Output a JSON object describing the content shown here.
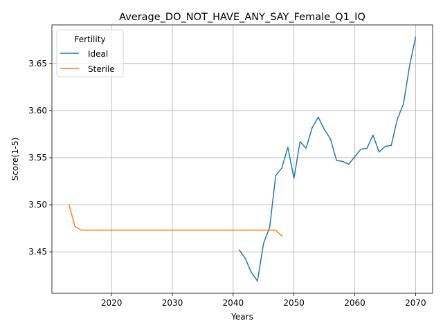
{
  "chart_data": {
    "type": "line",
    "title": "Average_DO_NOT_HAVE_ANY_SAY_Female_Q1_IQ",
    "xlabel": "Years",
    "ylabel": "Score(1-5)",
    "xlim": [
      2010.2,
      2072.8
    ],
    "ylim": [
      3.406,
      3.691
    ],
    "xticks": [
      2020,
      2030,
      2040,
      2050,
      2060,
      2070
    ],
    "yticks": [
      3.45,
      3.5,
      3.55,
      3.6,
      3.65
    ],
    "xtick_labels": [
      "2020",
      "2030",
      "2040",
      "2050",
      "2060",
      "2070"
    ],
    "ytick_labels": [
      "3.45",
      "3.50",
      "3.55",
      "3.60",
      "3.65"
    ],
    "grid": true,
    "legend": {
      "title": "Fertility",
      "placement": "upper left"
    },
    "series": [
      {
        "name": "Ideal",
        "color": "#1f77b4",
        "x": [
          2041,
          2042,
          2043,
          2044,
          2045,
          2046,
          2047,
          2048,
          2049,
          2050,
          2051,
          2052,
          2053,
          2054,
          2055,
          2056,
          2057,
          2058,
          2059,
          2060,
          2061,
          2062,
          2063,
          2064,
          2065,
          2066,
          2067,
          2068,
          2069,
          2070
        ],
        "y": [
          3.452,
          3.443,
          3.428,
          3.419,
          3.459,
          3.476,
          3.531,
          3.539,
          3.561,
          3.528,
          3.567,
          3.56,
          3.582,
          3.593,
          3.58,
          3.57,
          3.547,
          3.546,
          3.543,
          3.551,
          3.559,
          3.56,
          3.574,
          3.556,
          3.562,
          3.563,
          3.591,
          3.607,
          3.647,
          3.678
        ]
      },
      {
        "name": "Sterile",
        "color": "#ff7f0e",
        "x": [
          2013,
          2014,
          2015,
          2016,
          2017,
          2018,
          2019,
          2020,
          2021,
          2022,
          2023,
          2024,
          2025,
          2026,
          2027,
          2028,
          2029,
          2030,
          2031,
          2032,
          2033,
          2034,
          2035,
          2036,
          2037,
          2038,
          2039,
          2040,
          2041,
          2042,
          2043,
          2044,
          2045,
          2046,
          2047,
          2048
        ],
        "y": [
          3.5,
          3.477,
          3.473,
          3.473,
          3.473,
          3.473,
          3.473,
          3.473,
          3.473,
          3.473,
          3.473,
          3.473,
          3.473,
          3.473,
          3.473,
          3.473,
          3.473,
          3.473,
          3.473,
          3.473,
          3.473,
          3.473,
          3.473,
          3.473,
          3.473,
          3.473,
          3.473,
          3.473,
          3.473,
          3.473,
          3.473,
          3.473,
          3.473,
          3.473,
          3.473,
          3.467
        ]
      }
    ]
  }
}
